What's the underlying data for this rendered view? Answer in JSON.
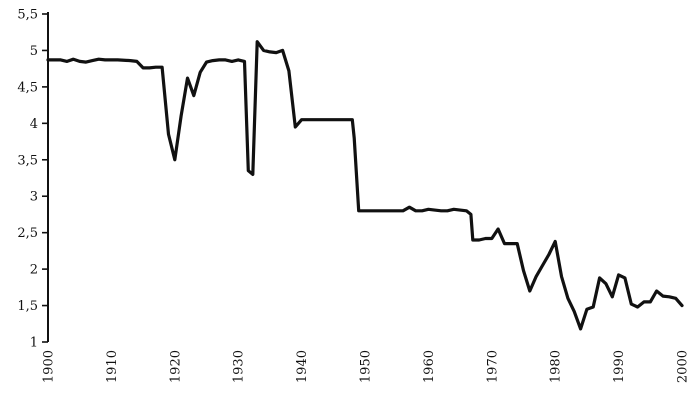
{
  "chart_data": {
    "type": "line",
    "title": "",
    "xlabel": "",
    "ylabel": "",
    "xlim": [
      1900,
      2000
    ],
    "ylim": [
      1,
      5.5
    ],
    "grid": false,
    "legend": "none",
    "line_color": "#111111",
    "x_ticks": [
      1900,
      1910,
      1920,
      1930,
      1940,
      1950,
      1960,
      1970,
      1980,
      1990,
      2000
    ],
    "x_tick_labels": [
      "1900",
      "1910",
      "1920",
      "1930",
      "1940",
      "1950",
      "1960",
      "1970",
      "1980",
      "1990",
      "2000"
    ],
    "y_ticks": [
      1,
      1.5,
      2,
      2.5,
      3,
      3.5,
      4,
      4.5,
      5,
      5.5
    ],
    "y_tick_labels": [
      "1",
      "1,5",
      "2",
      "2,5",
      "3",
      "3,5",
      "4",
      "4,5",
      "5",
      "5,5"
    ],
    "series": [
      {
        "x": [
          1900,
          1902,
          1903,
          1904,
          1905,
          1906,
          1907,
          1908,
          1909,
          1910,
          1911,
          1913,
          1914,
          1915,
          1916,
          1917,
          1918,
          1919,
          1920,
          1921,
          1922,
          1923,
          1924,
          1925,
          1926,
          1927,
          1928,
          1929,
          1930,
          1931,
          1931.6,
          1932.3,
          1933,
          1934,
          1935,
          1936,
          1937,
          1938,
          1939,
          1940,
          1948,
          1948.3,
          1949,
          1950,
          1955,
          1956,
          1957,
          1958,
          1959,
          1960,
          1961,
          1962,
          1963,
          1964,
          1965,
          1966,
          1966.7,
          1967,
          1968,
          1969,
          1970,
          1971,
          1972,
          1973,
          1974,
          1975,
          1976,
          1977,
          1978,
          1979,
          1980,
          1981,
          1982,
          1983,
          1984,
          1985,
          1986,
          1987,
          1988,
          1989,
          1990,
          1991,
          1992,
          1993,
          1994,
          1995,
          1996,
          1997,
          1998,
          1999,
          2000
        ],
        "y": [
          4.87,
          4.87,
          4.85,
          4.88,
          4.85,
          4.84,
          4.86,
          4.88,
          4.87,
          4.87,
          4.87,
          4.86,
          4.85,
          4.76,
          4.76,
          4.77,
          4.77,
          3.85,
          3.5,
          4.1,
          4.62,
          4.38,
          4.7,
          4.84,
          4.86,
          4.87,
          4.87,
          4.85,
          4.87,
          4.85,
          3.35,
          3.3,
          5.12,
          5.0,
          4.98,
          4.97,
          5.0,
          4.72,
          3.95,
          4.05,
          4.05,
          3.8,
          2.8,
          2.8,
          2.8,
          2.8,
          2.85,
          2.8,
          2.8,
          2.82,
          2.81,
          2.8,
          2.8,
          2.82,
          2.81,
          2.8,
          2.75,
          2.4,
          2.4,
          2.42,
          2.42,
          2.55,
          2.35,
          2.35,
          2.35,
          1.98,
          1.7,
          1.9,
          2.05,
          2.2,
          2.38,
          1.9,
          1.6,
          1.42,
          1.18,
          1.45,
          1.48,
          1.88,
          1.8,
          1.62,
          1.92,
          1.88,
          1.52,
          1.48,
          1.55,
          1.55,
          1.7,
          1.63,
          1.62,
          1.6,
          1.5
        ]
      }
    ]
  }
}
